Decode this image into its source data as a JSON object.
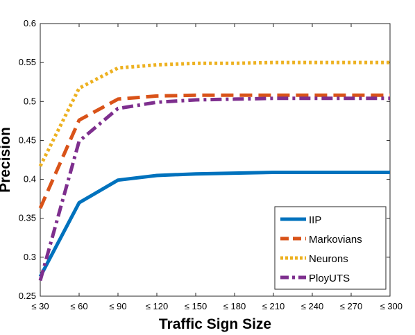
{
  "chart_data": {
    "type": "line",
    "xlabel": "Traffic Sign Size",
    "ylabel": "Precision",
    "categories": [
      "≤ 30",
      "≤ 60",
      "≤ 90",
      "≤ 120",
      "≤ 150",
      "≤ 180",
      "≤ 210",
      "≤ 240",
      "≤ 270",
      "≤ 300"
    ],
    "ylim": [
      0.25,
      0.6
    ],
    "yticks": [
      "0.25",
      "0.3",
      "0.35",
      "0.4",
      "0.45",
      "0.5",
      "0.55",
      "0.6"
    ],
    "grid": false,
    "legend_position": "bottom-right",
    "series": [
      {
        "name": "IIP",
        "color": "#0072BD",
        "style": "solid",
        "values": [
          0.275,
          0.37,
          0.399,
          0.405,
          0.407,
          0.408,
          0.409,
          0.409,
          0.409,
          0.409
        ]
      },
      {
        "name": "Markovians",
        "color": "#D95319",
        "style": "dashed",
        "values": [
          0.363,
          0.476,
          0.503,
          0.507,
          0.508,
          0.508,
          0.508,
          0.508,
          0.508,
          0.508
        ]
      },
      {
        "name": "Neurons",
        "color": "#EDB120",
        "style": "dotted",
        "values": [
          0.417,
          0.517,
          0.543,
          0.547,
          0.549,
          0.549,
          0.55,
          0.55,
          0.55,
          0.55
        ]
      },
      {
        "name": "PloyUTS",
        "color": "#7E2F8E",
        "style": "dashdot",
        "values": [
          0.27,
          0.449,
          0.491,
          0.499,
          0.502,
          0.503,
          0.504,
          0.504,
          0.504,
          0.504
        ]
      }
    ]
  }
}
